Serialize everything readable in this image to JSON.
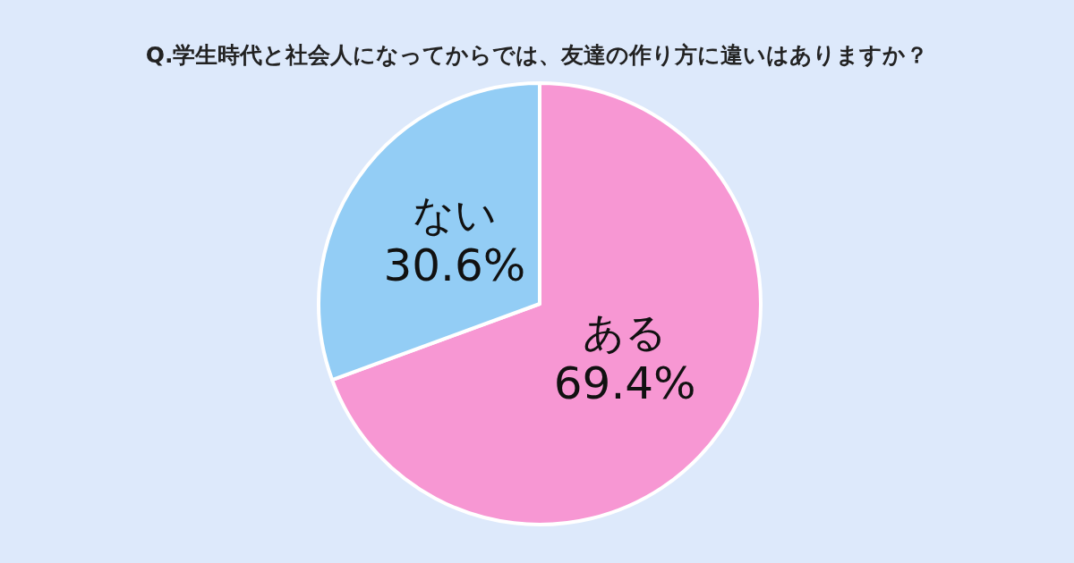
{
  "chart_data": {
    "type": "pie",
    "title": "Q.学生時代と社会人になってからでは、友達の作り方に違いはありますか？",
    "categories": [
      "ある",
      "ない"
    ],
    "values": [
      69.4,
      30.6
    ],
    "colors": [
      "#f797d3",
      "#93cdf5"
    ],
    "value_labels": [
      "69.4%",
      "30.6%"
    ]
  }
}
